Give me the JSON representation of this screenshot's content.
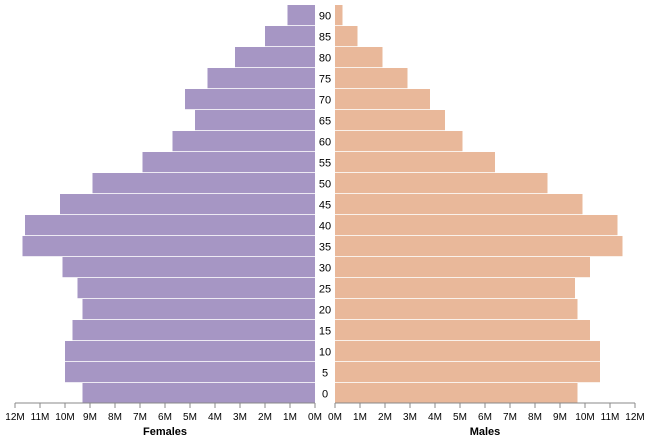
{
  "chart_data": {
    "type": "bar",
    "orientation": "horizontal-population-pyramid",
    "categories": [
      "90",
      "85",
      "80",
      "75",
      "70",
      "65",
      "60",
      "55",
      "50",
      "45",
      "40",
      "35",
      "30",
      "25",
      "20",
      "15",
      "10",
      "5",
      "0"
    ],
    "series": [
      {
        "name": "Females",
        "color": "#a696c4",
        "values": [
          1.1,
          2.0,
          3.2,
          4.3,
          5.2,
          4.8,
          5.7,
          6.9,
          8.9,
          10.2,
          11.6,
          11.7,
          10.1,
          9.5,
          9.3,
          9.7,
          10.0,
          10.0,
          9.3
        ]
      },
      {
        "name": "Males",
        "color": "#e9b89a",
        "values": [
          0.3,
          0.9,
          1.9,
          2.9,
          3.8,
          4.4,
          5.1,
          6.4,
          8.5,
          9.9,
          11.3,
          11.5,
          10.2,
          9.6,
          9.7,
          10.2,
          10.6,
          10.6,
          9.7
        ]
      }
    ],
    "xlim": [
      0,
      12
    ],
    "x_unit": "M",
    "ticks": [
      "12M",
      "11M",
      "10M",
      "9M",
      "8M",
      "7M",
      "6M",
      "5M",
      "4M",
      "3M",
      "2M",
      "1M",
      "0M"
    ],
    "ticks_right": [
      "0M",
      "1M",
      "2M",
      "3M",
      "4M",
      "5M",
      "6M",
      "7M",
      "8M",
      "9M",
      "10M",
      "11M",
      "12M"
    ],
    "xlabel_left": "Females",
    "xlabel_right": "Males",
    "grid": false
  }
}
